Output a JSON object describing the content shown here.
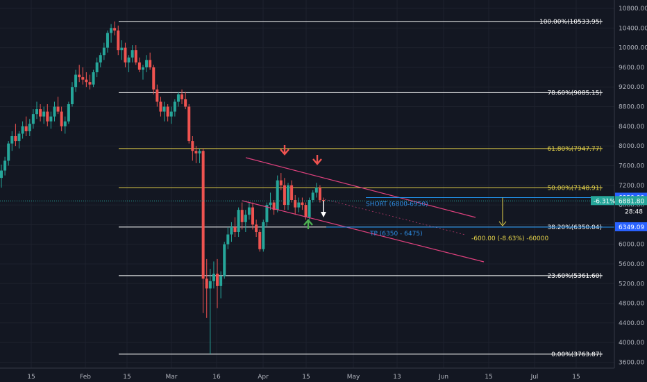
{
  "chart_data": {
    "type": "candlestick",
    "x_ticks": [
      "15",
      "Feb",
      "15",
      "Mar",
      "16",
      "Apr",
      "15",
      "May",
      "13",
      "Jun",
      "15",
      "Jul",
      "15"
    ],
    "y_ticks": [
      "10800.00",
      "10400.00",
      "10000.00",
      "9600.00",
      "9200.00",
      "8800.00",
      "8400.00",
      "8000.00",
      "7600.00",
      "7200.00",
      "6800.00",
      "6400.00",
      "6000.00",
      "5600.00",
      "5200.00",
      "4800.00",
      "4400.00",
      "4000.00",
      "3600.00"
    ],
    "ylim": [
      3480,
      10970
    ],
    "candles": [
      {
        "o": 7350,
        "h": 7620,
        "l": 7150,
        "c": 7500
      },
      {
        "o": 7500,
        "h": 7780,
        "l": 7400,
        "c": 7700
      },
      {
        "o": 7700,
        "h": 8100,
        "l": 7600,
        "c": 8050
      },
      {
        "o": 8050,
        "h": 8300,
        "l": 7900,
        "c": 8200
      },
      {
        "o": 8200,
        "h": 8450,
        "l": 8000,
        "c": 8100
      },
      {
        "o": 8100,
        "h": 8300,
        "l": 7950,
        "c": 8250
      },
      {
        "o": 8250,
        "h": 8500,
        "l": 8150,
        "c": 8400
      },
      {
        "o": 8400,
        "h": 8600,
        "l": 8200,
        "c": 8300
      },
      {
        "o": 8300,
        "h": 8550,
        "l": 8200,
        "c": 8450
      },
      {
        "o": 8450,
        "h": 8750,
        "l": 8350,
        "c": 8650
      },
      {
        "o": 8650,
        "h": 8900,
        "l": 8550,
        "c": 8750
      },
      {
        "o": 8750,
        "h": 8850,
        "l": 8500,
        "c": 8600
      },
      {
        "o": 8600,
        "h": 8800,
        "l": 8450,
        "c": 8700
      },
      {
        "o": 8700,
        "h": 8850,
        "l": 8400,
        "c": 8500
      },
      {
        "o": 8500,
        "h": 8700,
        "l": 8350,
        "c": 8600
      },
      {
        "o": 8600,
        "h": 8900,
        "l": 8500,
        "c": 8800
      },
      {
        "o": 8800,
        "h": 9000,
        "l": 8650,
        "c": 8700
      },
      {
        "o": 8700,
        "h": 8800,
        "l": 8300,
        "c": 8400
      },
      {
        "o": 8400,
        "h": 8600,
        "l": 8250,
        "c": 8500
      },
      {
        "o": 8500,
        "h": 8900,
        "l": 8450,
        "c": 8850
      },
      {
        "o": 8850,
        "h": 9300,
        "l": 8800,
        "c": 9200
      },
      {
        "o": 9200,
        "h": 9550,
        "l": 9100,
        "c": 9450
      },
      {
        "o": 9450,
        "h": 9650,
        "l": 9300,
        "c": 9400
      },
      {
        "o": 9400,
        "h": 9600,
        "l": 9250,
        "c": 9350
      },
      {
        "o": 9350,
        "h": 9500,
        "l": 9200,
        "c": 9300
      },
      {
        "o": 9300,
        "h": 9450,
        "l": 9150,
        "c": 9250
      },
      {
        "o": 9250,
        "h": 9550,
        "l": 9200,
        "c": 9500
      },
      {
        "o": 9500,
        "h": 9800,
        "l": 9400,
        "c": 9700
      },
      {
        "o": 9700,
        "h": 9900,
        "l": 9600,
        "c": 9850
      },
      {
        "o": 9850,
        "h": 10100,
        "l": 9750,
        "c": 10000
      },
      {
        "o": 10000,
        "h": 10350,
        "l": 9900,
        "c": 10300
      },
      {
        "o": 10300,
        "h": 10480,
        "l": 10100,
        "c": 10400
      },
      {
        "o": 10400,
        "h": 10534,
        "l": 10250,
        "c": 10350
      },
      {
        "o": 10350,
        "h": 10450,
        "l": 9850,
        "c": 9950
      },
      {
        "o": 9950,
        "h": 10150,
        "l": 9750,
        "c": 10000
      },
      {
        "o": 10000,
        "h": 10100,
        "l": 9600,
        "c": 9700
      },
      {
        "o": 9700,
        "h": 9850,
        "l": 9500,
        "c": 9800
      },
      {
        "o": 9800,
        "h": 10050,
        "l": 9700,
        "c": 9950
      },
      {
        "o": 9950,
        "h": 10050,
        "l": 9650,
        "c": 9700
      },
      {
        "o": 9700,
        "h": 9800,
        "l": 9500,
        "c": 9550
      },
      {
        "o": 9550,
        "h": 9650,
        "l": 9350,
        "c": 9600
      },
      {
        "o": 9600,
        "h": 9850,
        "l": 9500,
        "c": 9750
      },
      {
        "o": 9750,
        "h": 9900,
        "l": 9550,
        "c": 9600
      },
      {
        "o": 9600,
        "h": 9650,
        "l": 9050,
        "c": 9150
      },
      {
        "o": 9150,
        "h": 9250,
        "l": 8800,
        "c": 8900
      },
      {
        "o": 8900,
        "h": 9000,
        "l": 8600,
        "c": 8700
      },
      {
        "o": 8700,
        "h": 8900,
        "l": 8500,
        "c": 8800
      },
      {
        "o": 8800,
        "h": 8850,
        "l": 8500,
        "c": 8600
      },
      {
        "o": 8600,
        "h": 8800,
        "l": 8450,
        "c": 8700
      },
      {
        "o": 8700,
        "h": 8950,
        "l": 8600,
        "c": 8900
      },
      {
        "o": 8900,
        "h": 9100,
        "l": 8800,
        "c": 9050
      },
      {
        "o": 9050,
        "h": 9150,
        "l": 8850,
        "c": 8950
      },
      {
        "o": 8950,
        "h": 9100,
        "l": 8750,
        "c": 8800
      },
      {
        "o": 8800,
        "h": 8850,
        "l": 8050,
        "c": 8100
      },
      {
        "o": 8100,
        "h": 8200,
        "l": 7700,
        "c": 7900
      },
      {
        "o": 7900,
        "h": 8000,
        "l": 7650,
        "c": 7850
      },
      {
        "o": 7850,
        "h": 7950,
        "l": 7650,
        "c": 7900
      },
      {
        "o": 7900,
        "h": 7950,
        "l": 4600,
        "c": 5300
      },
      {
        "o": 5300,
        "h": 5700,
        "l": 4500,
        "c": 5100
      },
      {
        "o": 5100,
        "h": 5500,
        "l": 3764,
        "c": 5250
      },
      {
        "o": 5250,
        "h": 5650,
        "l": 5100,
        "c": 5400
      },
      {
        "o": 5400,
        "h": 5700,
        "l": 4700,
        "c": 5150
      },
      {
        "o": 5150,
        "h": 5450,
        "l": 4900,
        "c": 5350
      },
      {
        "o": 5350,
        "h": 6050,
        "l": 5300,
        "c": 6000
      },
      {
        "o": 6000,
        "h": 6350,
        "l": 5900,
        "c": 6200
      },
      {
        "o": 6200,
        "h": 6450,
        "l": 6050,
        "c": 6350
      },
      {
        "o": 6350,
        "h": 6550,
        "l": 6150,
        "c": 6250
      },
      {
        "o": 6250,
        "h": 6750,
        "l": 6150,
        "c": 6700
      },
      {
        "o": 6700,
        "h": 6850,
        "l": 6300,
        "c": 6450
      },
      {
        "o": 6450,
        "h": 6700,
        "l": 6250,
        "c": 6600
      },
      {
        "o": 6600,
        "h": 6850,
        "l": 6500,
        "c": 6750
      },
      {
        "o": 6750,
        "h": 6850,
        "l": 6300,
        "c": 6400
      },
      {
        "o": 6400,
        "h": 6500,
        "l": 6150,
        "c": 6250
      },
      {
        "o": 6250,
        "h": 6300,
        "l": 5850,
        "c": 5900
      },
      {
        "o": 5900,
        "h": 6500,
        "l": 5850,
        "c": 6450
      },
      {
        "o": 6450,
        "h": 6850,
        "l": 6350,
        "c": 6800
      },
      {
        "o": 6800,
        "h": 7050,
        "l": 6700,
        "c": 6850
      },
      {
        "o": 6850,
        "h": 6900,
        "l": 6600,
        "c": 6700
      },
      {
        "o": 6700,
        "h": 7400,
        "l": 6650,
        "c": 7300
      },
      {
        "o": 7300,
        "h": 7450,
        "l": 7100,
        "c": 7200
      },
      {
        "o": 7200,
        "h": 7350,
        "l": 6700,
        "c": 6800
      },
      {
        "o": 6800,
        "h": 7250,
        "l": 6700,
        "c": 7200
      },
      {
        "o": 7200,
        "h": 7300,
        "l": 6850,
        "c": 6900
      },
      {
        "o": 6900,
        "h": 7000,
        "l": 6600,
        "c": 6750
      },
      {
        "o": 6750,
        "h": 6950,
        "l": 6650,
        "c": 6850
      },
      {
        "o": 6850,
        "h": 6950,
        "l": 6700,
        "c": 6800
      },
      {
        "o": 6800,
        "h": 6850,
        "l": 6500,
        "c": 6550
      },
      {
        "o": 6550,
        "h": 6950,
        "l": 6500,
        "c": 6900
      },
      {
        "o": 6900,
        "h": 7100,
        "l": 6850,
        "c": 7050
      },
      {
        "o": 7050,
        "h": 7250,
        "l": 6950,
        "c": 7150
      },
      {
        "o": 7150,
        "h": 7200,
        "l": 6850,
        "c": 6900
      },
      {
        "o": 6900,
        "h": 6950,
        "l": 6700,
        "c": 6880
      }
    ],
    "levels": [
      {
        "label": "100.00%(10533.95)",
        "value": 10533.95,
        "color": "#ffffff"
      },
      {
        "label": "78.60%(9085.15)",
        "value": 9085.15,
        "color": "#ffffff"
      },
      {
        "label": "61.80%(7947.77)",
        "value": 7947.77,
        "color": "#e5d34a"
      },
      {
        "label": "50.00%(7148.91)",
        "value": 7148.91,
        "color": "#e5d34a"
      },
      {
        "label": "38.20%(6350.04)",
        "value": 6350.04,
        "color": "#ffffff"
      },
      {
        "label": "23.60%(5361.60)",
        "value": 5361.6,
        "color": "#ffffff"
      },
      {
        "label": "0.00%(3763.87)",
        "value": 3763.87,
        "color": "#ffffff"
      }
    ],
    "zones": {
      "short": {
        "label": "SHORT (6800-6950)",
        "value": 6950
      },
      "tp": {
        "label": "TP (6350 - 6475)",
        "value": 6349.09
      }
    },
    "measure_label": "-600.00 (-8.63%) -60000",
    "price_tags": {
      "top": "6950.00",
      "pct": "-6.31%",
      "current": "6881.80",
      "countdown": "28:48",
      "bottom": "6349.09"
    },
    "colors": {
      "up": "#26a69a",
      "down": "#ef5350",
      "channel": "#e0417e",
      "accent": "#2962ff",
      "bg": "#131722"
    }
  }
}
